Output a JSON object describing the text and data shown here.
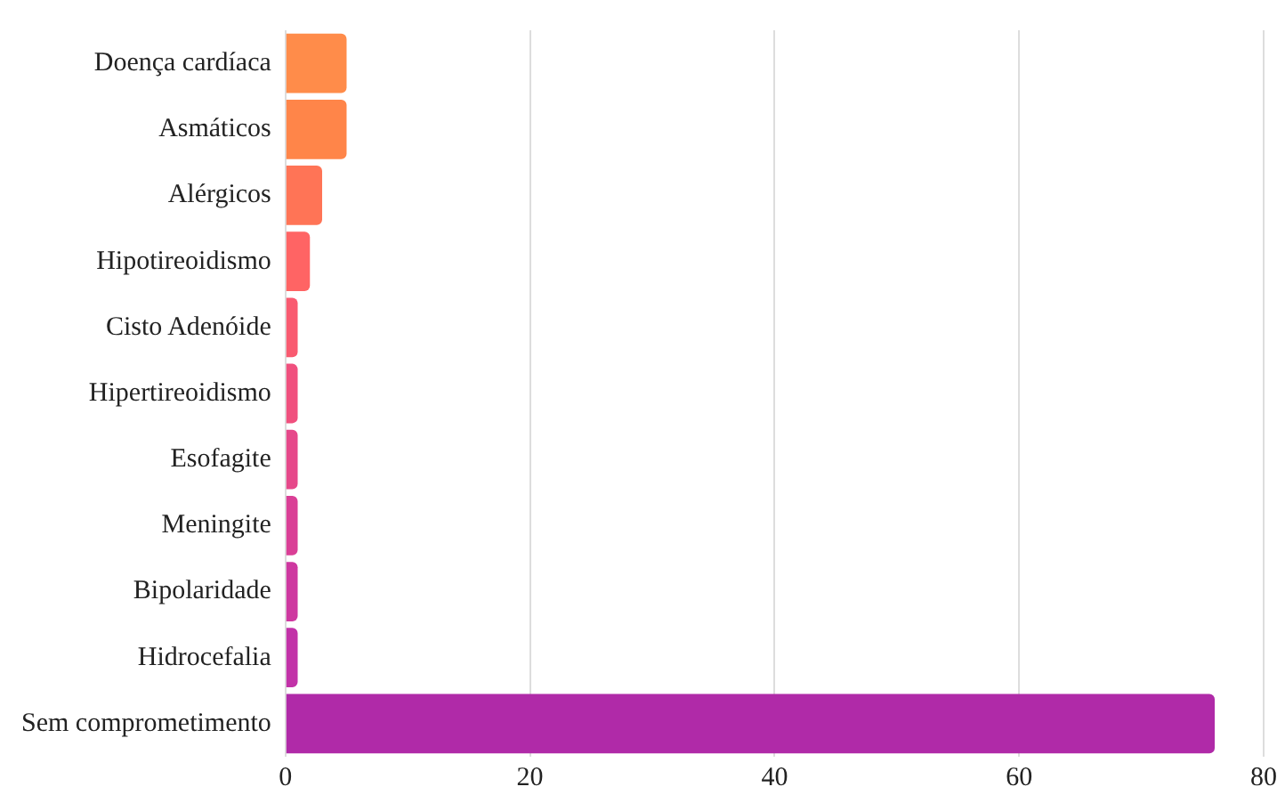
{
  "chart_data": {
    "type": "bar",
    "orientation": "horizontal",
    "categories": [
      "Doença cardíaca",
      "Asmáticos",
      "Alérgicos",
      "Hipotireoidismo",
      "Cisto Adenóide",
      "Hipertireoidismo",
      "Esofagite",
      "Meningite",
      "Bipolaridade",
      "Hidrocefalia",
      "Sem comprometimento"
    ],
    "values": [
      5,
      5,
      3,
      2,
      1,
      1,
      1,
      1,
      1,
      1,
      76
    ],
    "colors": [
      "#ff8c4a",
      "#ff8549",
      "#ff7456",
      "#ff6464",
      "#f95a70",
      "#f0507e",
      "#e6488a",
      "#da3f96",
      "#ce38a0",
      "#c232a8",
      "#b02aa8"
    ],
    "xlim": [
      0,
      80
    ],
    "xticks": [
      0,
      20,
      40,
      60,
      80
    ],
    "grid": "x",
    "legend": false
  }
}
